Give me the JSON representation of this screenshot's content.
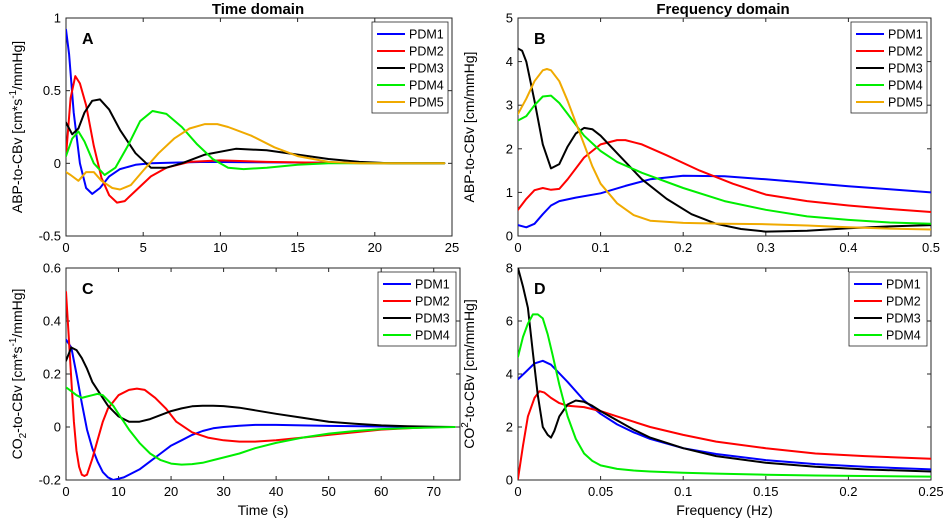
{
  "column_titles": {
    "left": "Time domain",
    "right": "Frequency domain"
  },
  "chart_data": [
    {
      "panel": "A",
      "type": "line",
      "xlabel": "",
      "ylabel_parts": [
        "ABP-to-CBv [cm*s",
        "-1",
        "/mmHg]"
      ],
      "xlim": [
        0,
        25
      ],
      "ylim": [
        -0.5,
        1
      ],
      "xticks": [
        0,
        5,
        10,
        15,
        20,
        25
      ],
      "yticks": [
        -0.5,
        0,
        0.5,
        1
      ],
      "xticklabels": [
        "0",
        "5",
        "10",
        "15",
        "20",
        "25"
      ],
      "yticklabels": [
        "-0.5",
        "0",
        "0.5",
        "1"
      ],
      "legend": "top-right",
      "series": [
        {
          "name": "PDM1",
          "color": "#0000ff",
          "x": [
            0,
            0.2,
            0.5,
            0.9,
            1.3,
            1.7,
            2.2,
            2.8,
            3.5,
            4.5,
            5.5,
            7,
            9,
            12,
            16,
            20,
            24.5
          ],
          "y": [
            0.92,
            0.75,
            0.35,
            0.0,
            -0.17,
            -0.21,
            -0.17,
            -0.09,
            -0.04,
            -0.01,
            0.0,
            0.005,
            0.01,
            0.008,
            0.005,
            0.002,
            0.0
          ]
        },
        {
          "name": "PDM2",
          "color": "#ff0000",
          "x": [
            0,
            0.3,
            0.6,
            0.9,
            1.3,
            1.8,
            2.3,
            2.8,
            3.3,
            3.8,
            4.5,
            5.5,
            6.5,
            8,
            10,
            13,
            17,
            21,
            24.5
          ],
          "y": [
            0.05,
            0.45,
            0.6,
            0.55,
            0.4,
            0.12,
            -0.1,
            -0.22,
            -0.27,
            -0.26,
            -0.19,
            -0.09,
            -0.03,
            0.01,
            0.02,
            0.01,
            0.003,
            0.0,
            0.0
          ]
        },
        {
          "name": "PDM3",
          "color": "#000000",
          "x": [
            0,
            0.4,
            0.8,
            1.2,
            1.7,
            2.2,
            2.8,
            3.5,
            4.5,
            5.5,
            6.5,
            7.5,
            9,
            11,
            13,
            15,
            17,
            19,
            21,
            23,
            24.5
          ],
          "y": [
            0.28,
            0.2,
            0.24,
            0.35,
            0.43,
            0.44,
            0.37,
            0.23,
            0.07,
            -0.03,
            -0.03,
            0.0,
            0.06,
            0.1,
            0.09,
            0.06,
            0.03,
            0.01,
            0.0,
            0.0,
            0.0
          ]
        },
        {
          "name": "PDM4",
          "color": "#00ee00",
          "x": [
            0,
            0.4,
            0.8,
            1.2,
            1.8,
            2.5,
            3.2,
            4,
            4.8,
            5.6,
            6.5,
            7.5,
            8.5,
            9.5,
            10.5,
            11.5,
            13,
            15,
            17,
            19,
            21,
            24.5
          ],
          "y": [
            0.05,
            0.17,
            0.22,
            0.15,
            0.0,
            -0.08,
            -0.03,
            0.12,
            0.29,
            0.36,
            0.34,
            0.25,
            0.13,
            0.03,
            -0.03,
            -0.04,
            -0.03,
            -0.01,
            0.0,
            0.0,
            0.0,
            0.0
          ]
        },
        {
          "name": "PDM5",
          "color": "#f0aa00",
          "x": [
            0,
            0.3,
            0.8,
            1.3,
            1.8,
            2.3,
            3,
            3.5,
            4.2,
            5,
            6,
            7,
            8,
            9,
            9.8,
            10.5,
            12,
            13.5,
            15,
            17,
            19,
            21,
            23,
            24.5
          ],
          "y": [
            -0.06,
            -0.08,
            -0.12,
            -0.06,
            -0.06,
            -0.12,
            -0.17,
            -0.18,
            -0.15,
            -0.05,
            0.07,
            0.17,
            0.24,
            0.27,
            0.27,
            0.25,
            0.19,
            0.11,
            0.05,
            0.01,
            0.0,
            0.0,
            0.0,
            0.0
          ]
        }
      ]
    },
    {
      "panel": "B",
      "type": "line",
      "xlabel": "",
      "ylabel_parts": [
        "ABP-to-CBv [cm/mmHg]"
      ],
      "xlim": [
        0,
        0.5
      ],
      "ylim": [
        0,
        5
      ],
      "xticks": [
        0,
        0.1,
        0.2,
        0.3,
        0.4,
        0.5
      ],
      "yticks": [
        0,
        1,
        2,
        3,
        4,
        5
      ],
      "xticklabels": [
        "0",
        "0.1",
        "0.2",
        "0.3",
        "0.4",
        "0.5"
      ],
      "yticklabels": [
        "0",
        "1",
        "2",
        "3",
        "4",
        "5"
      ],
      "legend": "top-right",
      "series": [
        {
          "name": "PDM1",
          "color": "#0000ff",
          "x": [
            0,
            0.01,
            0.02,
            0.03,
            0.04,
            0.05,
            0.07,
            0.1,
            0.13,
            0.16,
            0.2,
            0.25,
            0.3,
            0.35,
            0.4,
            0.45,
            0.5
          ],
          "y": [
            0.25,
            0.2,
            0.28,
            0.5,
            0.7,
            0.8,
            0.88,
            0.98,
            1.15,
            1.3,
            1.38,
            1.37,
            1.3,
            1.22,
            1.14,
            1.07,
            1.0
          ]
        },
        {
          "name": "PDM2",
          "color": "#ff0000",
          "x": [
            0,
            0.01,
            0.02,
            0.03,
            0.04,
            0.05,
            0.06,
            0.08,
            0.1,
            0.12,
            0.13,
            0.15,
            0.18,
            0.22,
            0.26,
            0.3,
            0.35,
            0.4,
            0.45,
            0.5
          ],
          "y": [
            0.6,
            0.85,
            1.05,
            1.1,
            1.06,
            1.08,
            1.3,
            1.8,
            2.1,
            2.2,
            2.2,
            2.1,
            1.85,
            1.5,
            1.2,
            0.95,
            0.8,
            0.7,
            0.62,
            0.55
          ]
        },
        {
          "name": "PDM3",
          "color": "#000000",
          "x": [
            0,
            0.005,
            0.01,
            0.02,
            0.03,
            0.04,
            0.05,
            0.06,
            0.07,
            0.08,
            0.09,
            0.1,
            0.12,
            0.15,
            0.18,
            0.21,
            0.24,
            0.27,
            0.3,
            0.35,
            0.4,
            0.45,
            0.5
          ],
          "y": [
            4.3,
            4.25,
            4.0,
            3.1,
            2.1,
            1.55,
            1.65,
            2.05,
            2.35,
            2.48,
            2.45,
            2.3,
            1.9,
            1.3,
            0.85,
            0.5,
            0.28,
            0.16,
            0.1,
            0.12,
            0.18,
            0.22,
            0.25
          ]
        },
        {
          "name": "PDM4",
          "color": "#00ee00",
          "x": [
            0,
            0.01,
            0.02,
            0.03,
            0.04,
            0.05,
            0.06,
            0.07,
            0.08,
            0.1,
            0.12,
            0.15,
            0.2,
            0.25,
            0.3,
            0.35,
            0.4,
            0.45,
            0.5
          ],
          "y": [
            2.65,
            2.75,
            3.0,
            3.2,
            3.22,
            3.05,
            2.8,
            2.55,
            2.3,
            1.95,
            1.7,
            1.45,
            1.1,
            0.8,
            0.6,
            0.45,
            0.37,
            0.31,
            0.28
          ]
        },
        {
          "name": "PDM5",
          "color": "#f0aa00",
          "x": [
            0,
            0.01,
            0.02,
            0.03,
            0.035,
            0.04,
            0.05,
            0.06,
            0.07,
            0.08,
            0.09,
            0.1,
            0.12,
            0.14,
            0.16,
            0.2,
            0.25,
            0.3,
            0.35,
            0.4,
            0.45,
            0.5
          ],
          "y": [
            2.8,
            3.15,
            3.55,
            3.8,
            3.83,
            3.8,
            3.55,
            3.1,
            2.6,
            2.1,
            1.6,
            1.2,
            0.75,
            0.48,
            0.35,
            0.3,
            0.28,
            0.27,
            0.24,
            0.2,
            0.17,
            0.15
          ]
        }
      ]
    },
    {
      "panel": "C",
      "type": "line",
      "xlabel": "Time (s)",
      "ylabel_parts": [
        "CO",
        "2",
        "-to-CBv [cm*s",
        "-1",
        "/mmHg]"
      ],
      "xlim": [
        0,
        75
      ],
      "ylim": [
        -0.2,
        0.6
      ],
      "xticks": [
        0,
        10,
        20,
        30,
        40,
        50,
        60,
        70
      ],
      "yticks": [
        -0.2,
        0,
        0.2,
        0.4,
        0.6
      ],
      "xticklabels": [
        "0",
        "10",
        "20",
        "30",
        "40",
        "50",
        "60",
        "70"
      ],
      "yticklabels": [
        "-0.2",
        "0",
        "0.2",
        "0.4",
        "0.6"
      ],
      "legend": "top-right",
      "series": [
        {
          "name": "PDM1",
          "color": "#0000ff",
          "x": [
            0,
            1,
            2,
            3,
            4,
            5,
            6,
            7,
            8,
            9,
            10,
            11,
            12,
            14,
            16,
            18,
            20,
            22,
            24,
            26,
            28,
            30,
            33,
            36,
            40,
            45,
            50,
            60,
            70,
            74
          ],
          "y": [
            0.33,
            0.3,
            0.2,
            0.09,
            -0.01,
            -0.08,
            -0.13,
            -0.17,
            -0.19,
            -0.2,
            -0.195,
            -0.19,
            -0.18,
            -0.16,
            -0.13,
            -0.1,
            -0.07,
            -0.05,
            -0.03,
            -0.015,
            -0.005,
            0.0,
            0.005,
            0.008,
            0.008,
            0.006,
            0.004,
            0.002,
            0.0,
            0.0
          ]
        },
        {
          "name": "PDM2",
          "color": "#ff0000",
          "x": [
            0,
            0.5,
            1,
            1.5,
            2,
            2.5,
            3,
            3.5,
            4,
            5,
            6,
            7,
            8,
            10,
            12,
            13.5,
            15,
            17,
            19,
            21,
            24,
            27,
            30,
            33,
            36,
            40,
            45,
            50,
            55,
            60,
            65,
            70,
            74
          ],
          "y": [
            0.51,
            0.35,
            0.18,
            0.02,
            -0.09,
            -0.15,
            -0.18,
            -0.185,
            -0.18,
            -0.12,
            -0.05,
            0.02,
            0.07,
            0.12,
            0.14,
            0.145,
            0.14,
            0.11,
            0.07,
            0.02,
            -0.02,
            -0.04,
            -0.05,
            -0.055,
            -0.055,
            -0.05,
            -0.04,
            -0.03,
            -0.02,
            -0.01,
            -0.005,
            0.0,
            0.0
          ]
        },
        {
          "name": "PDM3",
          "color": "#000000",
          "x": [
            0,
            1,
            2,
            3,
            4,
            5,
            6,
            8,
            10,
            12,
            14,
            16,
            18,
            20,
            22,
            24,
            26,
            28,
            30,
            33,
            36,
            40,
            45,
            50,
            55,
            60,
            65,
            70,
            74
          ],
          "y": [
            0.25,
            0.3,
            0.29,
            0.26,
            0.22,
            0.17,
            0.14,
            0.08,
            0.04,
            0.02,
            0.02,
            0.03,
            0.045,
            0.06,
            0.07,
            0.078,
            0.08,
            0.08,
            0.079,
            0.073,
            0.063,
            0.05,
            0.035,
            0.02,
            0.012,
            0.006,
            0.003,
            0.001,
            0.0
          ]
        },
        {
          "name": "PDM4",
          "color": "#00ee00",
          "x": [
            0,
            1,
            2,
            3,
            4,
            5,
            6,
            7,
            8,
            9,
            10,
            11,
            12,
            14,
            16,
            18,
            20,
            22,
            24,
            26,
            28,
            30,
            33,
            36,
            40,
            45,
            50,
            55,
            60,
            65,
            70,
            74
          ],
          "y": [
            0.15,
            0.135,
            0.12,
            0.11,
            0.115,
            0.12,
            0.125,
            0.12,
            0.1,
            0.08,
            0.05,
            0.02,
            -0.01,
            -0.06,
            -0.1,
            -0.125,
            -0.138,
            -0.142,
            -0.14,
            -0.135,
            -0.125,
            -0.115,
            -0.1,
            -0.08,
            -0.06,
            -0.04,
            -0.025,
            -0.015,
            -0.008,
            -0.004,
            -0.002,
            0.0
          ]
        }
      ]
    },
    {
      "panel": "D",
      "type": "line",
      "xlabel": "Frequency (Hz)",
      "ylabel_parts": [
        "CO",
        "2",
        "-to-CBv [cm/mmHg]"
      ],
      "xlim": [
        0,
        0.25
      ],
      "ylim": [
        0,
        8
      ],
      "xticks": [
        0,
        0.05,
        0.1,
        0.15,
        0.2,
        0.25
      ],
      "yticks": [
        0,
        2,
        4,
        6,
        8
      ],
      "xticklabels": [
        "0",
        "0.05",
        "0.1",
        "0.15",
        "0.2",
        "0.25"
      ],
      "yticklabels": [
        "0",
        "2",
        "4",
        "6",
        "8"
      ],
      "legend": "top-right",
      "series": [
        {
          "name": "PDM1",
          "color": "#0000ff",
          "x": [
            0,
            0.005,
            0.01,
            0.015,
            0.02,
            0.03,
            0.04,
            0.05,
            0.06,
            0.07,
            0.08,
            0.1,
            0.12,
            0.15,
            0.18,
            0.21,
            0.25
          ],
          "y": [
            3.8,
            4.1,
            4.4,
            4.5,
            4.35,
            3.7,
            3.0,
            2.5,
            2.1,
            1.8,
            1.55,
            1.2,
            0.98,
            0.75,
            0.6,
            0.5,
            0.4
          ]
        },
        {
          "name": "PDM2",
          "color": "#ff0000",
          "x": [
            0,
            0.003,
            0.006,
            0.01,
            0.013,
            0.016,
            0.02,
            0.025,
            0.03,
            0.04,
            0.05,
            0.06,
            0.07,
            0.08,
            0.1,
            0.12,
            0.15,
            0.18,
            0.21,
            0.25
          ],
          "y": [
            0.05,
            1.3,
            2.4,
            3.1,
            3.35,
            3.3,
            3.1,
            2.9,
            2.8,
            2.75,
            2.6,
            2.4,
            2.2,
            2.0,
            1.7,
            1.45,
            1.2,
            1.0,
            0.9,
            0.8
          ]
        },
        {
          "name": "PDM3",
          "color": "#000000",
          "x": [
            0,
            0.003,
            0.006,
            0.009,
            0.012,
            0.015,
            0.018,
            0.02,
            0.022,
            0.025,
            0.03,
            0.035,
            0.04,
            0.045,
            0.05,
            0.06,
            0.07,
            0.08,
            0.1,
            0.12,
            0.15,
            0.18,
            0.21,
            0.25
          ],
          "y": [
            8.0,
            7.3,
            6.5,
            4.8,
            3.2,
            2.0,
            1.7,
            1.6,
            1.85,
            2.4,
            2.85,
            3.0,
            2.95,
            2.8,
            2.6,
            2.25,
            1.9,
            1.6,
            1.2,
            0.9,
            0.65,
            0.5,
            0.4,
            0.32
          ]
        },
        {
          "name": "PDM4",
          "color": "#00ee00",
          "x": [
            0,
            0.003,
            0.006,
            0.009,
            0.012,
            0.015,
            0.018,
            0.021,
            0.025,
            0.03,
            0.035,
            0.04,
            0.045,
            0.05,
            0.06,
            0.07,
            0.08,
            0.1,
            0.12,
            0.15,
            0.18,
            0.21,
            0.25
          ],
          "y": [
            4.65,
            5.4,
            5.9,
            6.25,
            6.25,
            6.1,
            5.5,
            4.7,
            3.6,
            2.4,
            1.55,
            1.0,
            0.72,
            0.55,
            0.42,
            0.36,
            0.32,
            0.27,
            0.24,
            0.2,
            0.17,
            0.15,
            0.13
          ]
        }
      ]
    }
  ]
}
